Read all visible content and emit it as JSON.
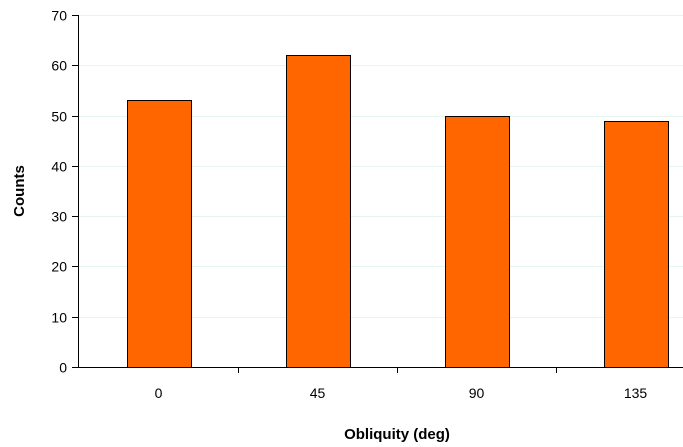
{
  "chart_data": {
    "type": "bar",
    "categories": [
      "0",
      "45",
      "90",
      "135"
    ],
    "values": [
      53,
      62,
      50,
      49
    ],
    "title": "",
    "xlabel": "Obliquity (deg)",
    "ylabel": "Counts",
    "ylim": [
      0,
      70
    ],
    "yticks": [
      "0",
      "10",
      "20",
      "30",
      "40",
      "50",
      "60",
      "70"
    ],
    "grid": true,
    "legend": "none",
    "colors": {
      "bar_fill": "#ff6600",
      "bar_stroke": "#000000",
      "gridline": "#e6f4f2",
      "axis": "#000000"
    }
  }
}
